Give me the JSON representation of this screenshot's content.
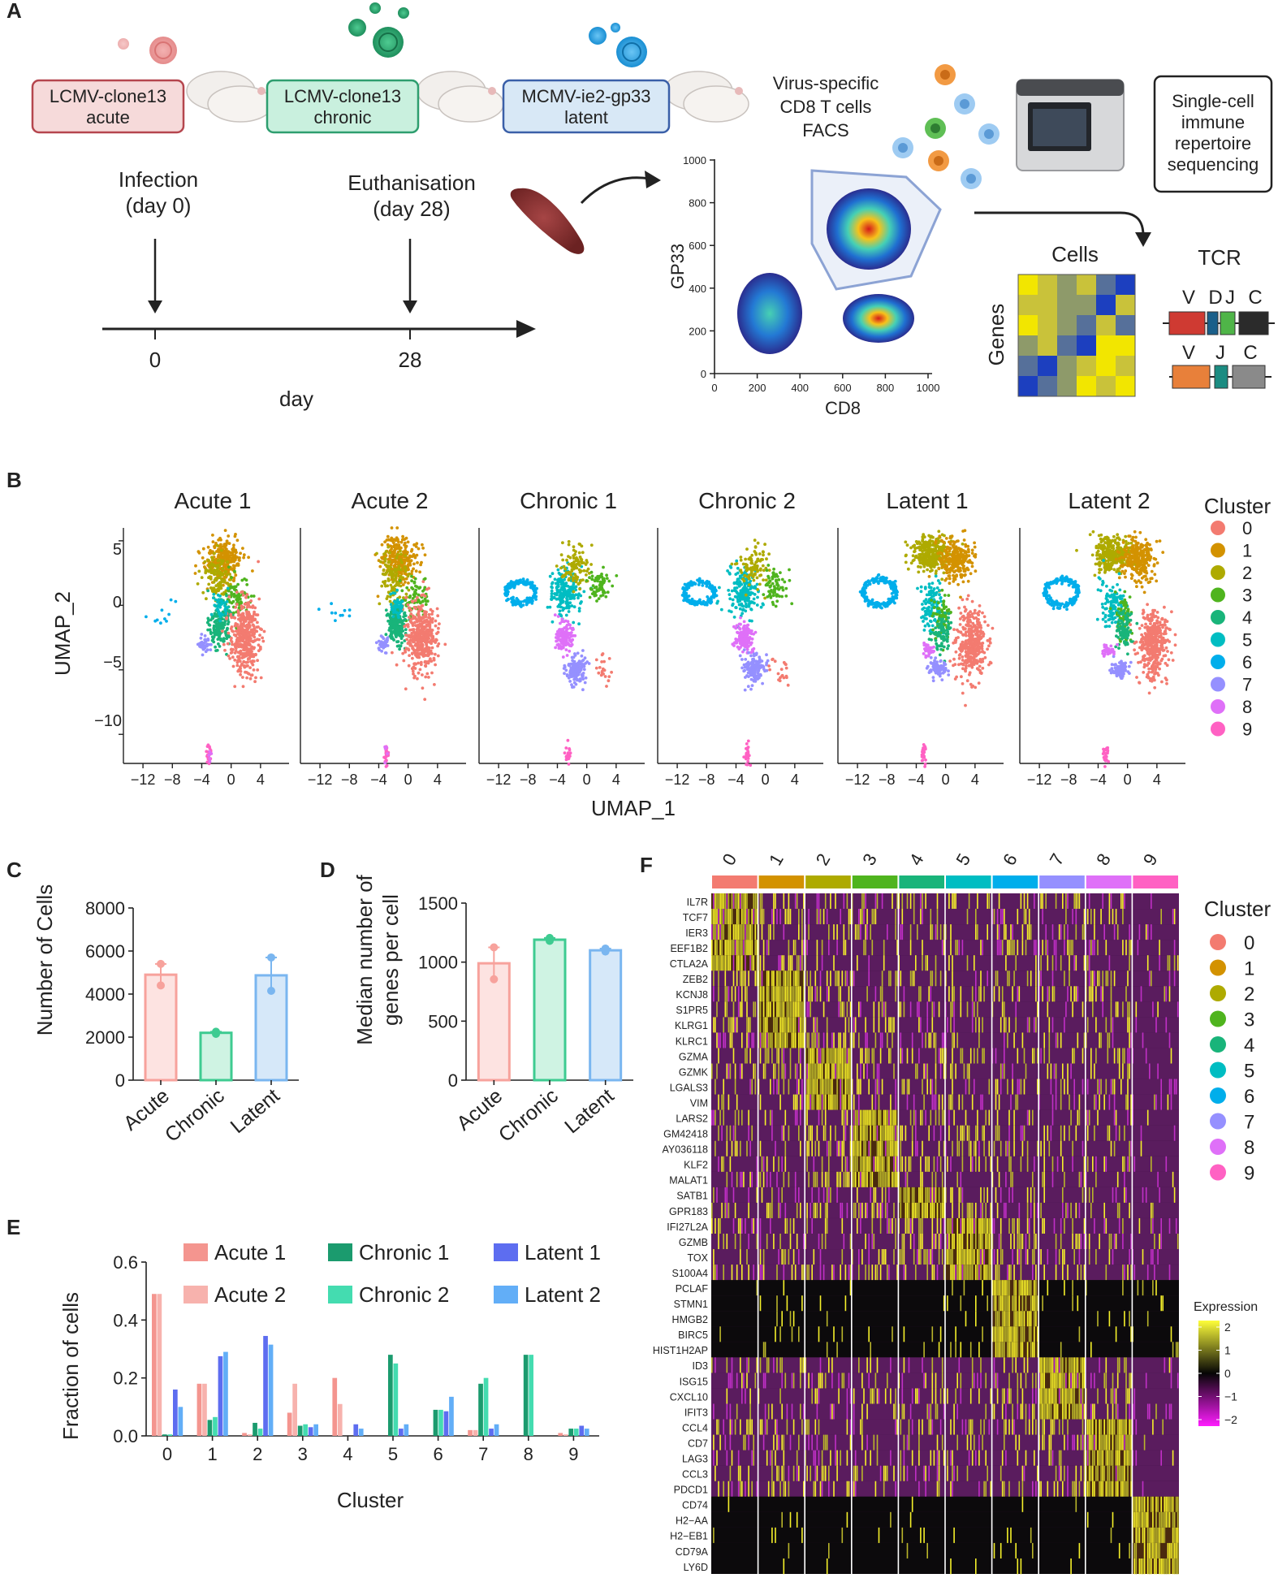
{
  "panels": {
    "a": "A",
    "b": "B",
    "c": "C",
    "d": "D",
    "e": "E",
    "f": "F"
  },
  "panel_a": {
    "infection_boxes": [
      {
        "line1": "LCMV-clone13",
        "line2": "acute",
        "border": "#b5464e",
        "fill": "#f6dada"
      },
      {
        "line1": "LCMV-clone13",
        "line2": "chronic",
        "border": "#2e9e6f",
        "fill": "#c9f0de"
      },
      {
        "line1": "MCMV-ie2-gp33",
        "line2": "latent",
        "border": "#3a5fa8",
        "fill": "#d8e8f6"
      }
    ],
    "infection_label": [
      "Infection",
      "(day 0)"
    ],
    "euthanisation_label": [
      "Euthanisation",
      "(day 28)"
    ],
    "timeline_ticks": [
      "0",
      "28"
    ],
    "timeline_xlabel": "day",
    "facs_label": [
      "Virus-specific",
      "CD8 T cells",
      "FACS"
    ],
    "sequencing_label": [
      "Single-cell",
      "immune",
      "repertoire",
      "sequencing"
    ],
    "facs_plot": {
      "xlabel": "CD8",
      "ylabel": "GP33",
      "xticks": [
        "0",
        "200",
        "400",
        "600",
        "800",
        "1000"
      ],
      "yticks": [
        "0",
        "200",
        "400",
        "600",
        "800",
        "1000"
      ]
    },
    "matrix": {
      "title": "Cells",
      "ylabel": "Genes"
    },
    "tcr": {
      "title": "TCR",
      "beta_segments": [
        "V",
        "D",
        "J",
        "C"
      ],
      "alpha_segments": [
        "V",
        "J",
        "C"
      ]
    }
  },
  "panel_b": {
    "titles": [
      "Acute 1",
      "Acute 2",
      "Chronic 1",
      "Chronic 2",
      "Latent 1",
      "Latent 2"
    ],
    "ylabel": "UMAP_2",
    "xlabel": "UMAP_1",
    "yticks": [
      "5",
      "0",
      "−5",
      "−10"
    ],
    "xticks": [
      "−12",
      "−8",
      "−4",
      "0",
      "4"
    ],
    "legend_title": "Cluster",
    "clusters": [
      "0",
      "1",
      "2",
      "3",
      "4",
      "5",
      "6",
      "7",
      "8",
      "9"
    ],
    "cluster_colors": [
      "#f37b70",
      "#d39200",
      "#aeaa00",
      "#4fb41e",
      "#19b47a",
      "#00bdc2",
      "#00aeeb",
      "#9590ff",
      "#df70f8",
      "#ff61c3"
    ]
  },
  "chart_data": [
    {
      "type": "bar",
      "panel": "C",
      "categories": [
        "Acute",
        "Chronic",
        "Latent"
      ],
      "values": [
        4900,
        2200,
        4870
      ],
      "points": [
        [
          5400,
          4400
        ],
        [
          2250,
          2150
        ],
        [
          5700,
          4150
        ]
      ],
      "colors": [
        "#f7a29c",
        "#3ecb91",
        "#7ab6f0"
      ],
      "fills": [
        "#fde3e1",
        "#cff3e3",
        "#d6e8f9"
      ],
      "ylabel": "Number of Cells",
      "ylim": [
        0,
        8000
      ],
      "yticks": [
        "0",
        "2000",
        "4000",
        "6000",
        "8000"
      ]
    },
    {
      "type": "bar",
      "panel": "D",
      "categories": [
        "Acute",
        "Chronic",
        "Latent"
      ],
      "values": [
        990,
        1190,
        1100
      ],
      "points": [
        [
          1125,
          855
        ],
        [
          1205,
          1180
        ],
        [
          1115,
          1090
        ]
      ],
      "colors": [
        "#f7a29c",
        "#3ecb91",
        "#7ab6f0"
      ],
      "fills": [
        "#fde3e1",
        "#cff3e3",
        "#d6e8f9"
      ],
      "ylabel": [
        "Median number of",
        "genes per cell"
      ],
      "ylim": [
        0,
        1500
      ],
      "yticks": [
        "0",
        "500",
        "1000",
        "1500"
      ]
    },
    {
      "type": "bar",
      "panel": "E",
      "categories": [
        "0",
        "1",
        "2",
        "3",
        "4",
        "5",
        "6",
        "7",
        "8",
        "9"
      ],
      "series": [
        {
          "name": "Acute 1",
          "color": "#f4958f",
          "values": [
            0.49,
            0.18,
            0.01,
            0.08,
            0.2,
            0.0,
            0.0,
            0.02,
            0.0,
            0.01
          ]
        },
        {
          "name": "Acute 2",
          "color": "#f7b2ad",
          "values": [
            0.49,
            0.18,
            0.005,
            0.18,
            0.11,
            0.0,
            0.0,
            0.02,
            0.0,
            0.005
          ]
        },
        {
          "name": "Chronic 1",
          "color": "#1b9b6e",
          "values": [
            0.005,
            0.055,
            0.045,
            0.035,
            0.0,
            0.28,
            0.09,
            0.18,
            0.28,
            0.025
          ]
        },
        {
          "name": "Chronic 2",
          "color": "#44dcb0",
          "values": [
            0.005,
            0.065,
            0.025,
            0.04,
            0.0,
            0.25,
            0.09,
            0.2,
            0.28,
            0.025
          ]
        },
        {
          "name": "Latent 1",
          "color": "#5d6df0",
          "values": [
            0.16,
            0.275,
            0.345,
            0.03,
            0.04,
            0.025,
            0.085,
            0.025,
            0.0,
            0.035
          ]
        },
        {
          "name": "Latent 2",
          "color": "#62aef7",
          "values": [
            0.1,
            0.29,
            0.315,
            0.04,
            0.025,
            0.04,
            0.135,
            0.04,
            0.0,
            0.025
          ]
        }
      ],
      "xlabel": "Cluster",
      "ylabel": "Fraction of cells",
      "ylim": [
        0,
        0.6
      ],
      "yticks": [
        "0.0",
        "0.2",
        "0.4",
        "0.6"
      ]
    },
    {
      "type": "heatmap",
      "panel": "F",
      "columns": [
        "0",
        "1",
        "2",
        "3",
        "4",
        "5",
        "6",
        "7",
        "8",
        "9"
      ],
      "column_colors": [
        "#f37b70",
        "#d39200",
        "#aeaa00",
        "#4fb41e",
        "#19b47a",
        "#00bdc2",
        "#00aeeb",
        "#9590ff",
        "#df70f8",
        "#ff61c3"
      ],
      "genes": [
        "IL7R",
        "TCF7",
        "IER3",
        "EEF1B2",
        "CTLA2A",
        "ZEB2",
        "KCNJ8",
        "S1PR5",
        "KLRG1",
        "KLRC1",
        "GZMA",
        "GZMK",
        "LGALS3",
        "VIM",
        "LARS2",
        "GM42418",
        "AY036118",
        "KLF2",
        "MALAT1",
        "SATB1",
        "GPR183",
        "IFI27L2A",
        "GZMB",
        "TOX",
        "S100A4",
        "PCLAF",
        "STMN1",
        "HMGB2",
        "BIRC5",
        "HIST1H2AP",
        "ID3",
        "ISG15",
        "CXCL10",
        "IFIT3",
        "CCL4",
        "CD7",
        "LAG3",
        "CCL3",
        "PDCD1",
        "CD74",
        "H2−AA",
        "H2−EB1",
        "CD79A",
        "LY6D"
      ],
      "gene_cluster": [
        0,
        0,
        0,
        0,
        0,
        1,
        1,
        1,
        1,
        1,
        2,
        2,
        2,
        2,
        3,
        3,
        3,
        3,
        3,
        4,
        4,
        5,
        5,
        5,
        5,
        6,
        6,
        6,
        6,
        6,
        7,
        7,
        7,
        7,
        8,
        8,
        8,
        8,
        8,
        9,
        9,
        9,
        9,
        9
      ],
      "legend_title": "Cluster",
      "scale_title": "Expression",
      "scale_ticks": [
        "2",
        "1",
        "0",
        "−1",
        "−2"
      ]
    }
  ]
}
